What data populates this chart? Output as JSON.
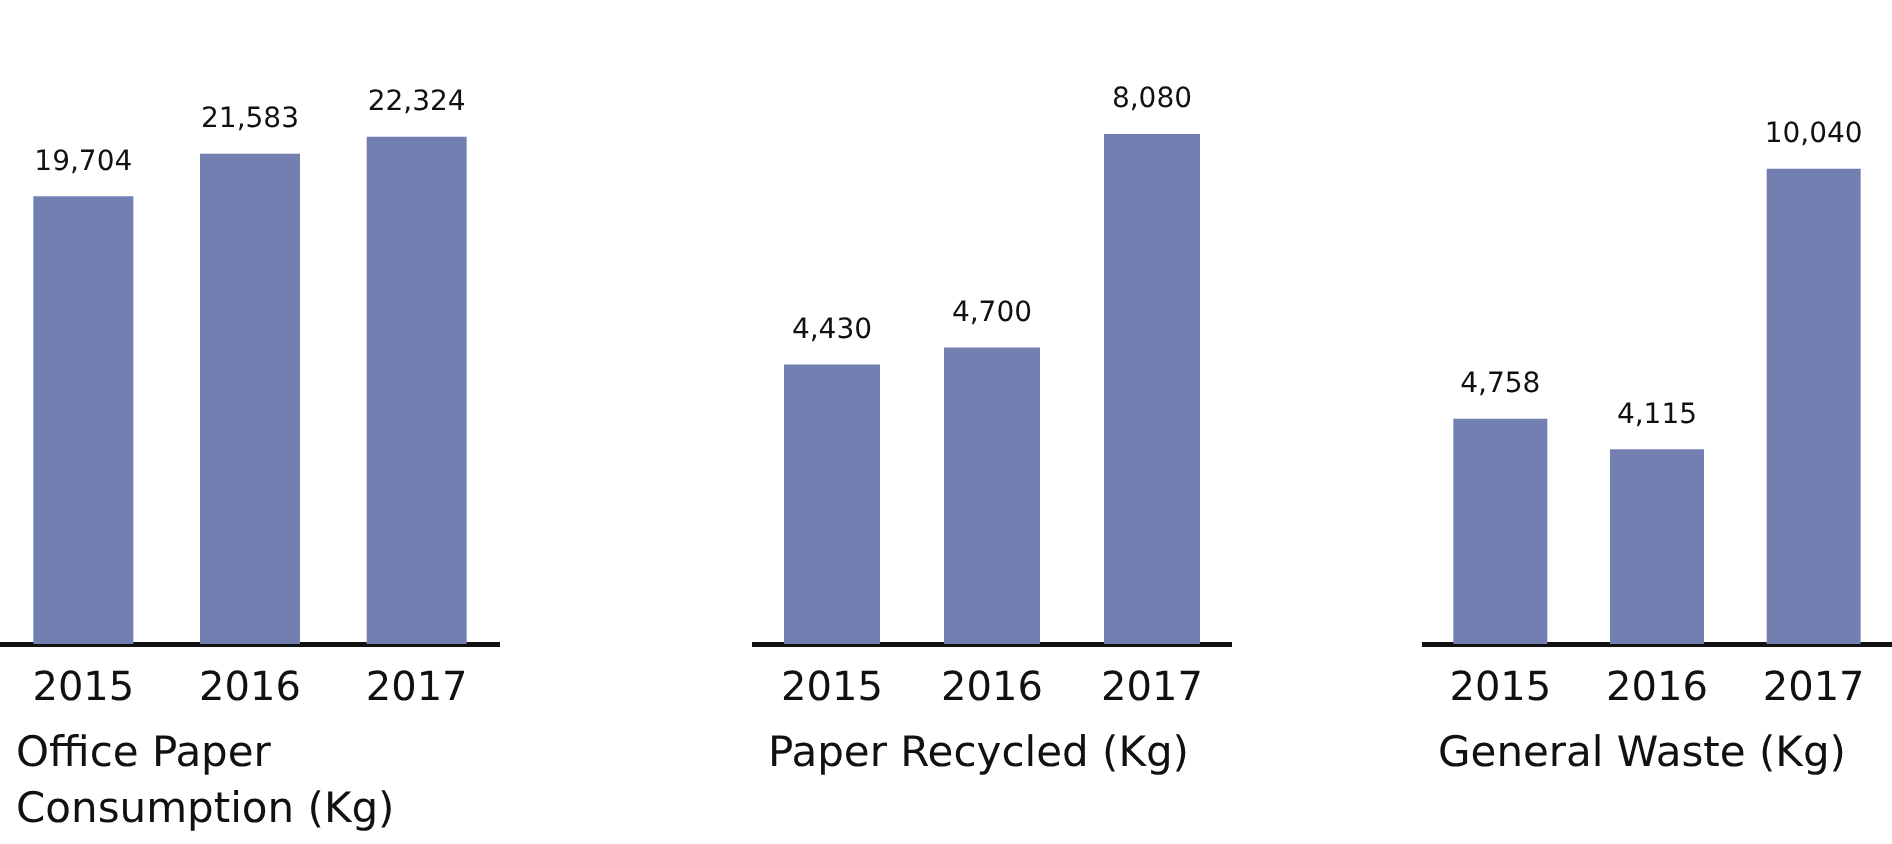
{
  "chart_data": [
    {
      "type": "bar",
      "title": "Office Paper Consumption (Kg)",
      "categories": [
        "2015",
        "2016",
        "2017"
      ],
      "values": [
        19704,
        21583,
        22324
      ],
      "color": "#737fb0",
      "value_labels": [
        "19,704",
        "21,583",
        "22,324"
      ]
    },
    {
      "type": "bar",
      "title": "Paper Recycled (Kg)",
      "categories": [
        "2015",
        "2016",
        "2017"
      ],
      "values": [
        4430,
        4700,
        8080
      ],
      "color": "#737fb0",
      "value_labels": [
        "4,430",
        "4,700",
        "8,080"
      ]
    },
    {
      "type": "bar",
      "title": "General Waste (Kg)",
      "categories": [
        "2015",
        "2016",
        "2017"
      ],
      "values": [
        4758,
        4115,
        10040
      ],
      "color": "#737fb0",
      "value_labels": [
        "4,758",
        "4,115",
        "10,040"
      ]
    }
  ]
}
